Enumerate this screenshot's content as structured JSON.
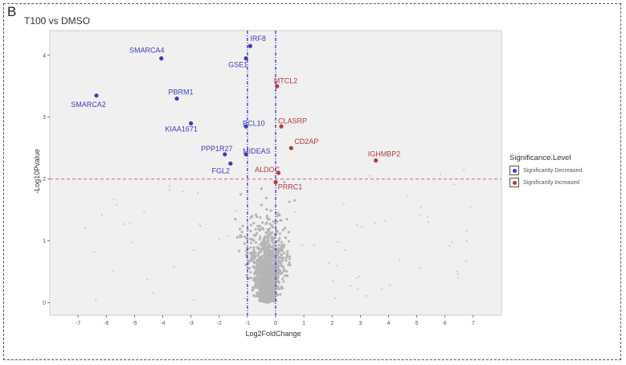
{
  "panel_letter": "B",
  "chart_data": {
    "type": "scatter",
    "title": "T100 vs DMSO",
    "xlabel": "Log2FoldChange",
    "ylabel": "-Log10Pvalue",
    "xlim": [
      -8,
      8
    ],
    "ylim": [
      -0.2,
      4.4
    ],
    "x_ticks": [
      -7,
      -6,
      -5,
      -4,
      -3,
      -2,
      -1,
      0,
      1,
      2,
      3,
      4,
      5,
      6,
      7
    ],
    "y_ticks": [
      0,
      1,
      2,
      3,
      4
    ],
    "grid": false,
    "legend_placement": "right",
    "fold_change_thresholds": [
      -1,
      0
    ],
    "significance_threshold": 2,
    "colors": {
      "decreased": "#3c3cc0",
      "increased": "#b83a3a",
      "background": "#b5b5b5",
      "panel_fill": "#f0f0f0",
      "vline": "#4a4ae0",
      "hline": "#e06060"
    },
    "legend": {
      "title": "Significance.Level",
      "entries": [
        {
          "label": "Significantly Decreased",
          "color": "#3c3cc0"
        },
        {
          "label": "Significantly Increased",
          "color": "#b83a3a"
        }
      ]
    },
    "series": [
      {
        "name": "Significantly Decreased",
        "points": [
          {
            "label": "IRF8",
            "x": -0.9,
            "y": 4.15
          },
          {
            "label": "GSE1",
            "x": -1.05,
            "y": 3.95
          },
          {
            "label": "SMARCA4",
            "x": -4.05,
            "y": 3.95
          },
          {
            "label": "SMARCA2",
            "x": -6.35,
            "y": 3.35
          },
          {
            "label": "PBRM1",
            "x": -3.5,
            "y": 3.3
          },
          {
            "label": "KIAA1671",
            "x": -3.0,
            "y": 2.9
          },
          {
            "label": "BCL10",
            "x": -1.05,
            "y": 2.85
          },
          {
            "label": "PPP1R27",
            "x": -1.8,
            "y": 2.4
          },
          {
            "label": "MIDEAS",
            "x": -1.05,
            "y": 2.4
          },
          {
            "label": "FGL2",
            "x": -1.6,
            "y": 2.25
          }
        ]
      },
      {
        "name": "Significantly Increased",
        "points": [
          {
            "label": "MTCL2",
            "x": 0.05,
            "y": 3.5
          },
          {
            "label": "CLASRP",
            "x": 0.2,
            "y": 2.85
          },
          {
            "label": "CD2AP",
            "x": 0.55,
            "y": 2.5
          },
          {
            "label": "IGHMBP2",
            "x": 3.55,
            "y": 2.3
          },
          {
            "label": "ALDOC",
            "x": 0.1,
            "y": 2.1
          },
          {
            "label": "PRRC1",
            "x": 0.0,
            "y": 1.95
          }
        ]
      }
    ]
  }
}
